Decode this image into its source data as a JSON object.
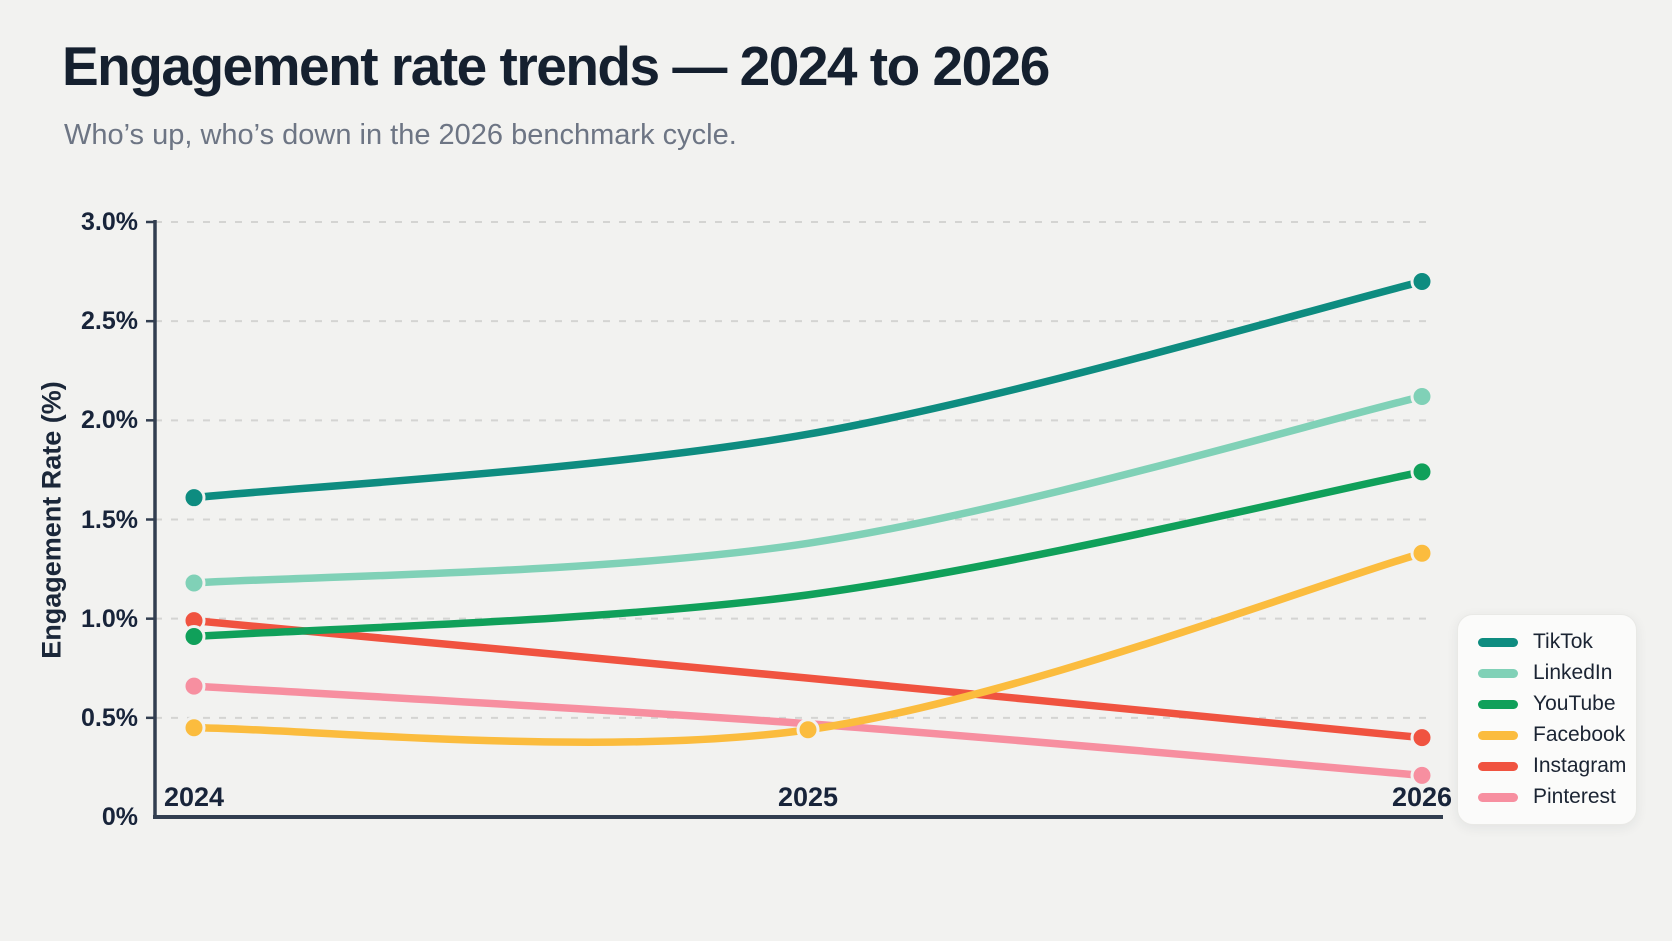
{
  "page": {
    "title": "Engagement rate trends — 2024 to 2026",
    "subtitle": "Who’s up, who’s down in the 2026 benchmark cycle."
  },
  "chart_data": {
    "type": "line",
    "title": "Engagement rate trends — 2024 to 2026",
    "subtitle": "Who’s up, who’s down in the 2026 benchmark cycle.",
    "x": [
      "2024",
      "2025",
      "2026"
    ],
    "xlabel": "",
    "ylabel": "Engagement Rate (%)",
    "ylim": [
      0,
      3
    ],
    "yticks": [
      "0%",
      "0.5%",
      "1.0%",
      "1.5%",
      "2.0%",
      "2.5%",
      "3.0%"
    ],
    "grid": "horizontal-dashed",
    "legend_position": "right",
    "series": [
      {
        "name": "TikTok",
        "color": "#0e8c80",
        "values": [
          1.61,
          1.93,
          2.7
        ],
        "markers": [
          0,
          2
        ]
      },
      {
        "name": "LinkedIn",
        "color": "#80d1b7",
        "values": [
          1.18,
          1.38,
          2.12
        ],
        "markers": [
          0,
          2
        ]
      },
      {
        "name": "YouTube",
        "color": "#10a05a",
        "values": [
          0.91,
          1.12,
          1.74
        ],
        "markers": [
          0,
          2
        ]
      },
      {
        "name": "Facebook",
        "color": "#fbbc3e",
        "values": [
          0.45,
          0.44,
          1.33
        ],
        "markers": [
          0,
          1,
          2
        ]
      },
      {
        "name": "Instagram",
        "color": "#f05340",
        "values": [
          0.99,
          0.7,
          0.4
        ],
        "markers": [
          0,
          2
        ]
      },
      {
        "name": "Pinterest",
        "color": "#f78fa0",
        "values": [
          0.66,
          0.47,
          0.21
        ],
        "markers": [
          0,
          2
        ]
      }
    ]
  },
  "colors": {
    "background": "#f2f2f0",
    "title_text": "#15202f",
    "subtitle_text": "#6d7584",
    "axis_text": "#18243a",
    "axis_line": "#323e50",
    "gridline": "#d4d4d2",
    "legend_background": "#fbfbfa"
  }
}
